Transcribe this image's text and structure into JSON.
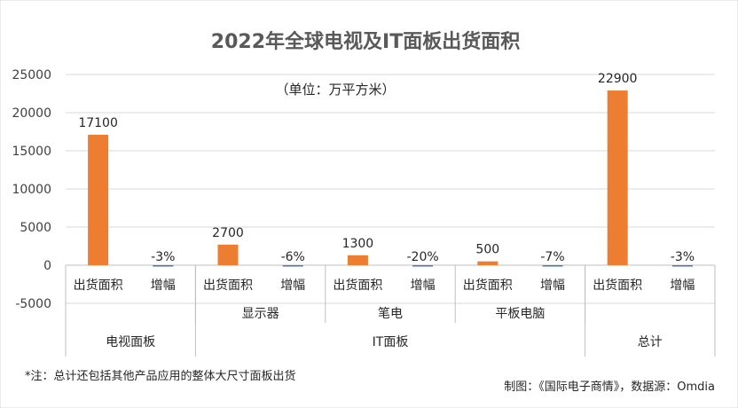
{
  "chart_data": {
    "type": "bar",
    "title": "2022年全球电视及IT面板出货面积",
    "subtitle": "（单位：万平方米）",
    "ylim": [
      -5000,
      25000
    ],
    "yticks": [
      -5000,
      0,
      5000,
      10000,
      15000,
      20000,
      25000
    ],
    "grid": true,
    "categories": [
      "出货面积",
      "增幅",
      "出货面积",
      "增幅",
      "出货面积",
      "增幅",
      "出货面积",
      "增幅",
      "出货面积",
      "增幅"
    ],
    "values": [
      17100,
      -3,
      2700,
      -6,
      1300,
      -20,
      500,
      -7,
      22900,
      -3
    ],
    "data_labels": [
      "17100",
      "-3%",
      "2700",
      "-6%",
      "1300",
      "-20%",
      "500",
      "-7%",
      "22900",
      "-3%"
    ],
    "bar_kinds": [
      "area",
      "growth",
      "area",
      "growth",
      "area",
      "growth",
      "area",
      "growth",
      "area",
      "growth"
    ],
    "subgroups": [
      {
        "label": "",
        "span": [
          0,
          1
        ]
      },
      {
        "label": "显示器",
        "span": [
          2,
          3
        ]
      },
      {
        "label": "笔电",
        "span": [
          4,
          5
        ]
      },
      {
        "label": "平板电脑",
        "span": [
          6,
          7
        ]
      },
      {
        "label": "",
        "span": [
          8,
          9
        ]
      }
    ],
    "groups": [
      {
        "label": "电视面板",
        "span": [
          0,
          1
        ]
      },
      {
        "label": "IT面板",
        "span": [
          2,
          7
        ]
      },
      {
        "label": "总计",
        "span": [
          8,
          9
        ]
      }
    ],
    "colors": {
      "area": "#ed7d31",
      "growth": "#4472c4",
      "grid": "#d9d9d9",
      "axis": "#bfbfbf"
    }
  },
  "footer": {
    "note": "*注：总计还包括其他产品应用的整体大尺寸面板出货",
    "credit": "制图：《国际电子商情》，数据源：Omdia"
  }
}
